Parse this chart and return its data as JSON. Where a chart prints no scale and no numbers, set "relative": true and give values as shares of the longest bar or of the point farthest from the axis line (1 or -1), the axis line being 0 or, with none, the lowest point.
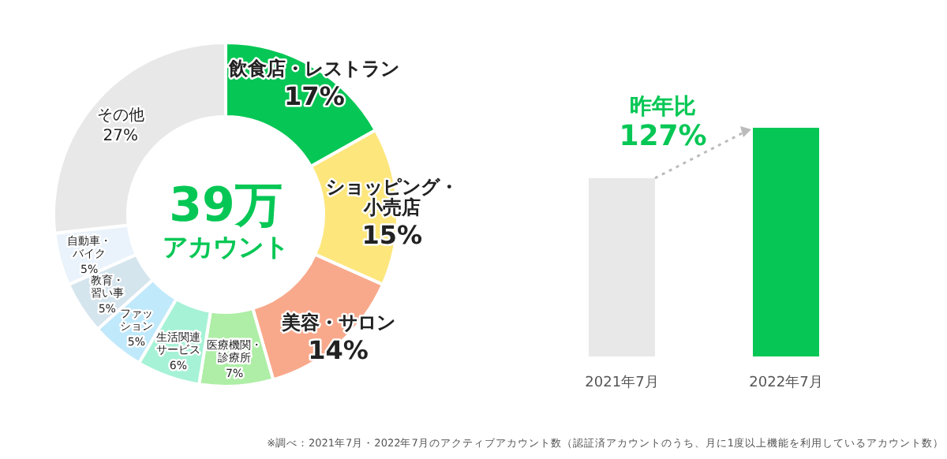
{
  "chart_data": [
    {
      "type": "donut",
      "categories": [
        "飲食店・レストラン",
        "ショッピング・小売店",
        "美容・サロン",
        "医療機関・診療所",
        "生活関連サービス",
        "ファッション",
        "教育・習い事",
        "自動車・バイク",
        "その他"
      ],
      "values": [
        17,
        15,
        14,
        7,
        6,
        5,
        5,
        5,
        27
      ],
      "value_labels": [
        "17%",
        "15%",
        "14%",
        "7%",
        "6%",
        "5%",
        "5%",
        "5%",
        "27%"
      ],
      "colors": [
        "#06c755",
        "#fde67c",
        "#f9a98b",
        "#aeeea6",
        "#a6f2d6",
        "#c0e9fb",
        "#d5e5ee",
        "#eaf3fb",
        "#e8e8e8"
      ],
      "annotations": [
        "39万",
        "アカウント"
      ]
    },
    {
      "type": "bar",
      "relative": true,
      "categories": [
        "2021年7月",
        "2022年7月"
      ],
      "values": [
        0.78,
        1
      ],
      "colors": [
        "#e8e8e8",
        "#06c755"
      ],
      "annotations": [
        "昨年比",
        "127%",
        "※調べ：2021年7月・2022年7月のアクティブアカウント数（認証済アカウントのうち、月に1度以上機能を利用しているアカウント数）"
      ]
    }
  ]
}
